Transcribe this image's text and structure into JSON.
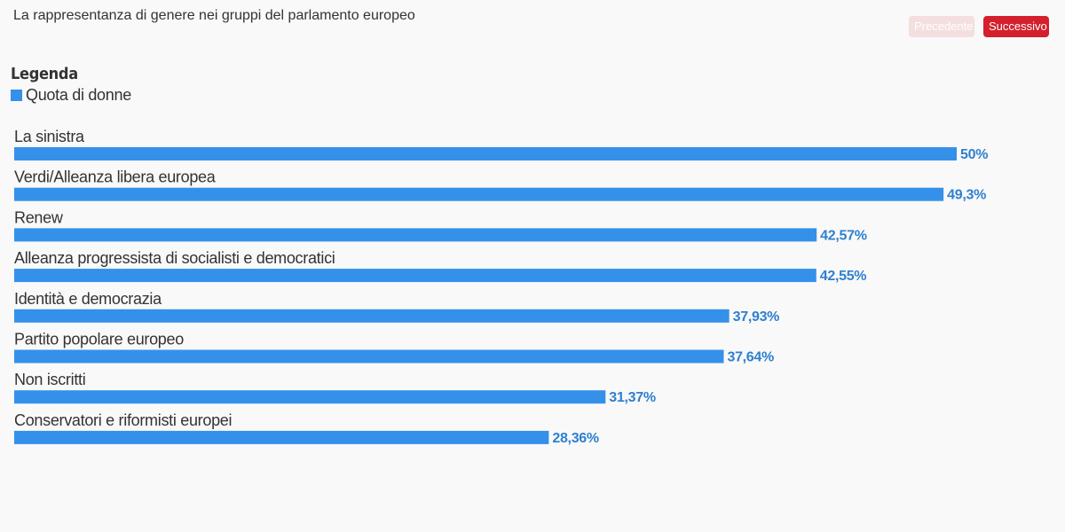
{
  "title": "La rappresentanza di genere nei gruppi del parlamento europeo",
  "nav": {
    "prev_label": "Precedente",
    "next_label": "Successivo"
  },
  "legend": {
    "title": "Legenda",
    "items": [
      {
        "label": "Quota di donne",
        "color": "#3590ea"
      }
    ]
  },
  "colors": {
    "bar": "#3590ea",
    "value_label": "#2f7fd0"
  },
  "chart_data": {
    "type": "bar",
    "orientation": "horizontal",
    "categories": [
      "La sinistra",
      "Verdi/Alleanza libera europea",
      "Renew",
      "Alleanza progressista di socialisti e democratici",
      "Identità e democrazia",
      "Partito popolare europeo",
      "Non iscritti",
      "Conservatori e riformisti europei"
    ],
    "values": [
      50,
      49.3,
      42.57,
      42.55,
      37.93,
      37.64,
      31.37,
      28.36
    ],
    "value_labels": [
      "50%",
      "49,3%",
      "42,57%",
      "42,55%",
      "37,93%",
      "37,64%",
      "31,37%",
      "28,36%"
    ],
    "series": [
      {
        "name": "Quota di donne"
      }
    ],
    "xlim": [
      0,
      50
    ],
    "title": "La rappresentanza di genere nei gruppi del parlamento europeo"
  }
}
